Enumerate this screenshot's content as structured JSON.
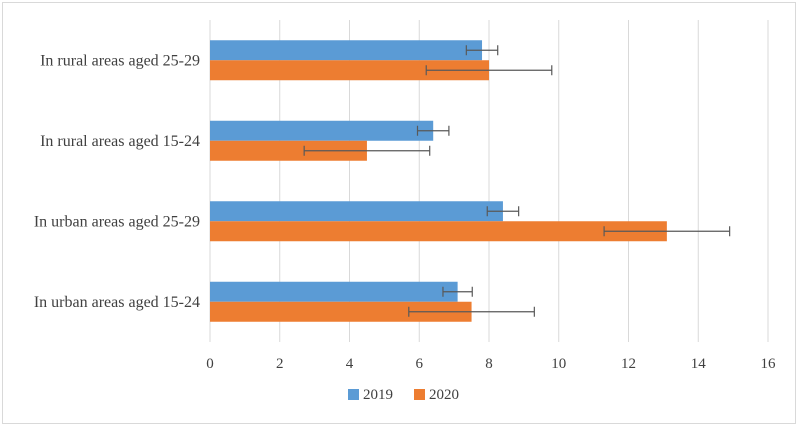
{
  "chart_data": {
    "type": "bar",
    "orientation": "horizontal",
    "categories": [
      "In rural areas aged 25-29",
      "In rural areas aged 15-24",
      "In urban areas aged 25-29",
      "In urban areas aged 15-24"
    ],
    "series": [
      {
        "name": "2019",
        "color": "#5b9bd5",
        "values": [
          7.8,
          6.4,
          8.4,
          7.1
        ],
        "error": [
          0.45,
          0.45,
          0.45,
          0.42
        ]
      },
      {
        "name": "2020",
        "color": "#ed7d31",
        "values": [
          8.0,
          4.5,
          13.1,
          7.5
        ],
        "error": [
          1.8,
          1.8,
          1.8,
          1.8
        ]
      }
    ],
    "xlim": [
      0,
      16
    ],
    "xticks": [
      "0",
      "2",
      "4",
      "6",
      "8",
      "10",
      "12",
      "14",
      "16"
    ],
    "grid": "vertical",
    "legend": "bottom",
    "title": "",
    "xlabel": "",
    "ylabel": ""
  }
}
